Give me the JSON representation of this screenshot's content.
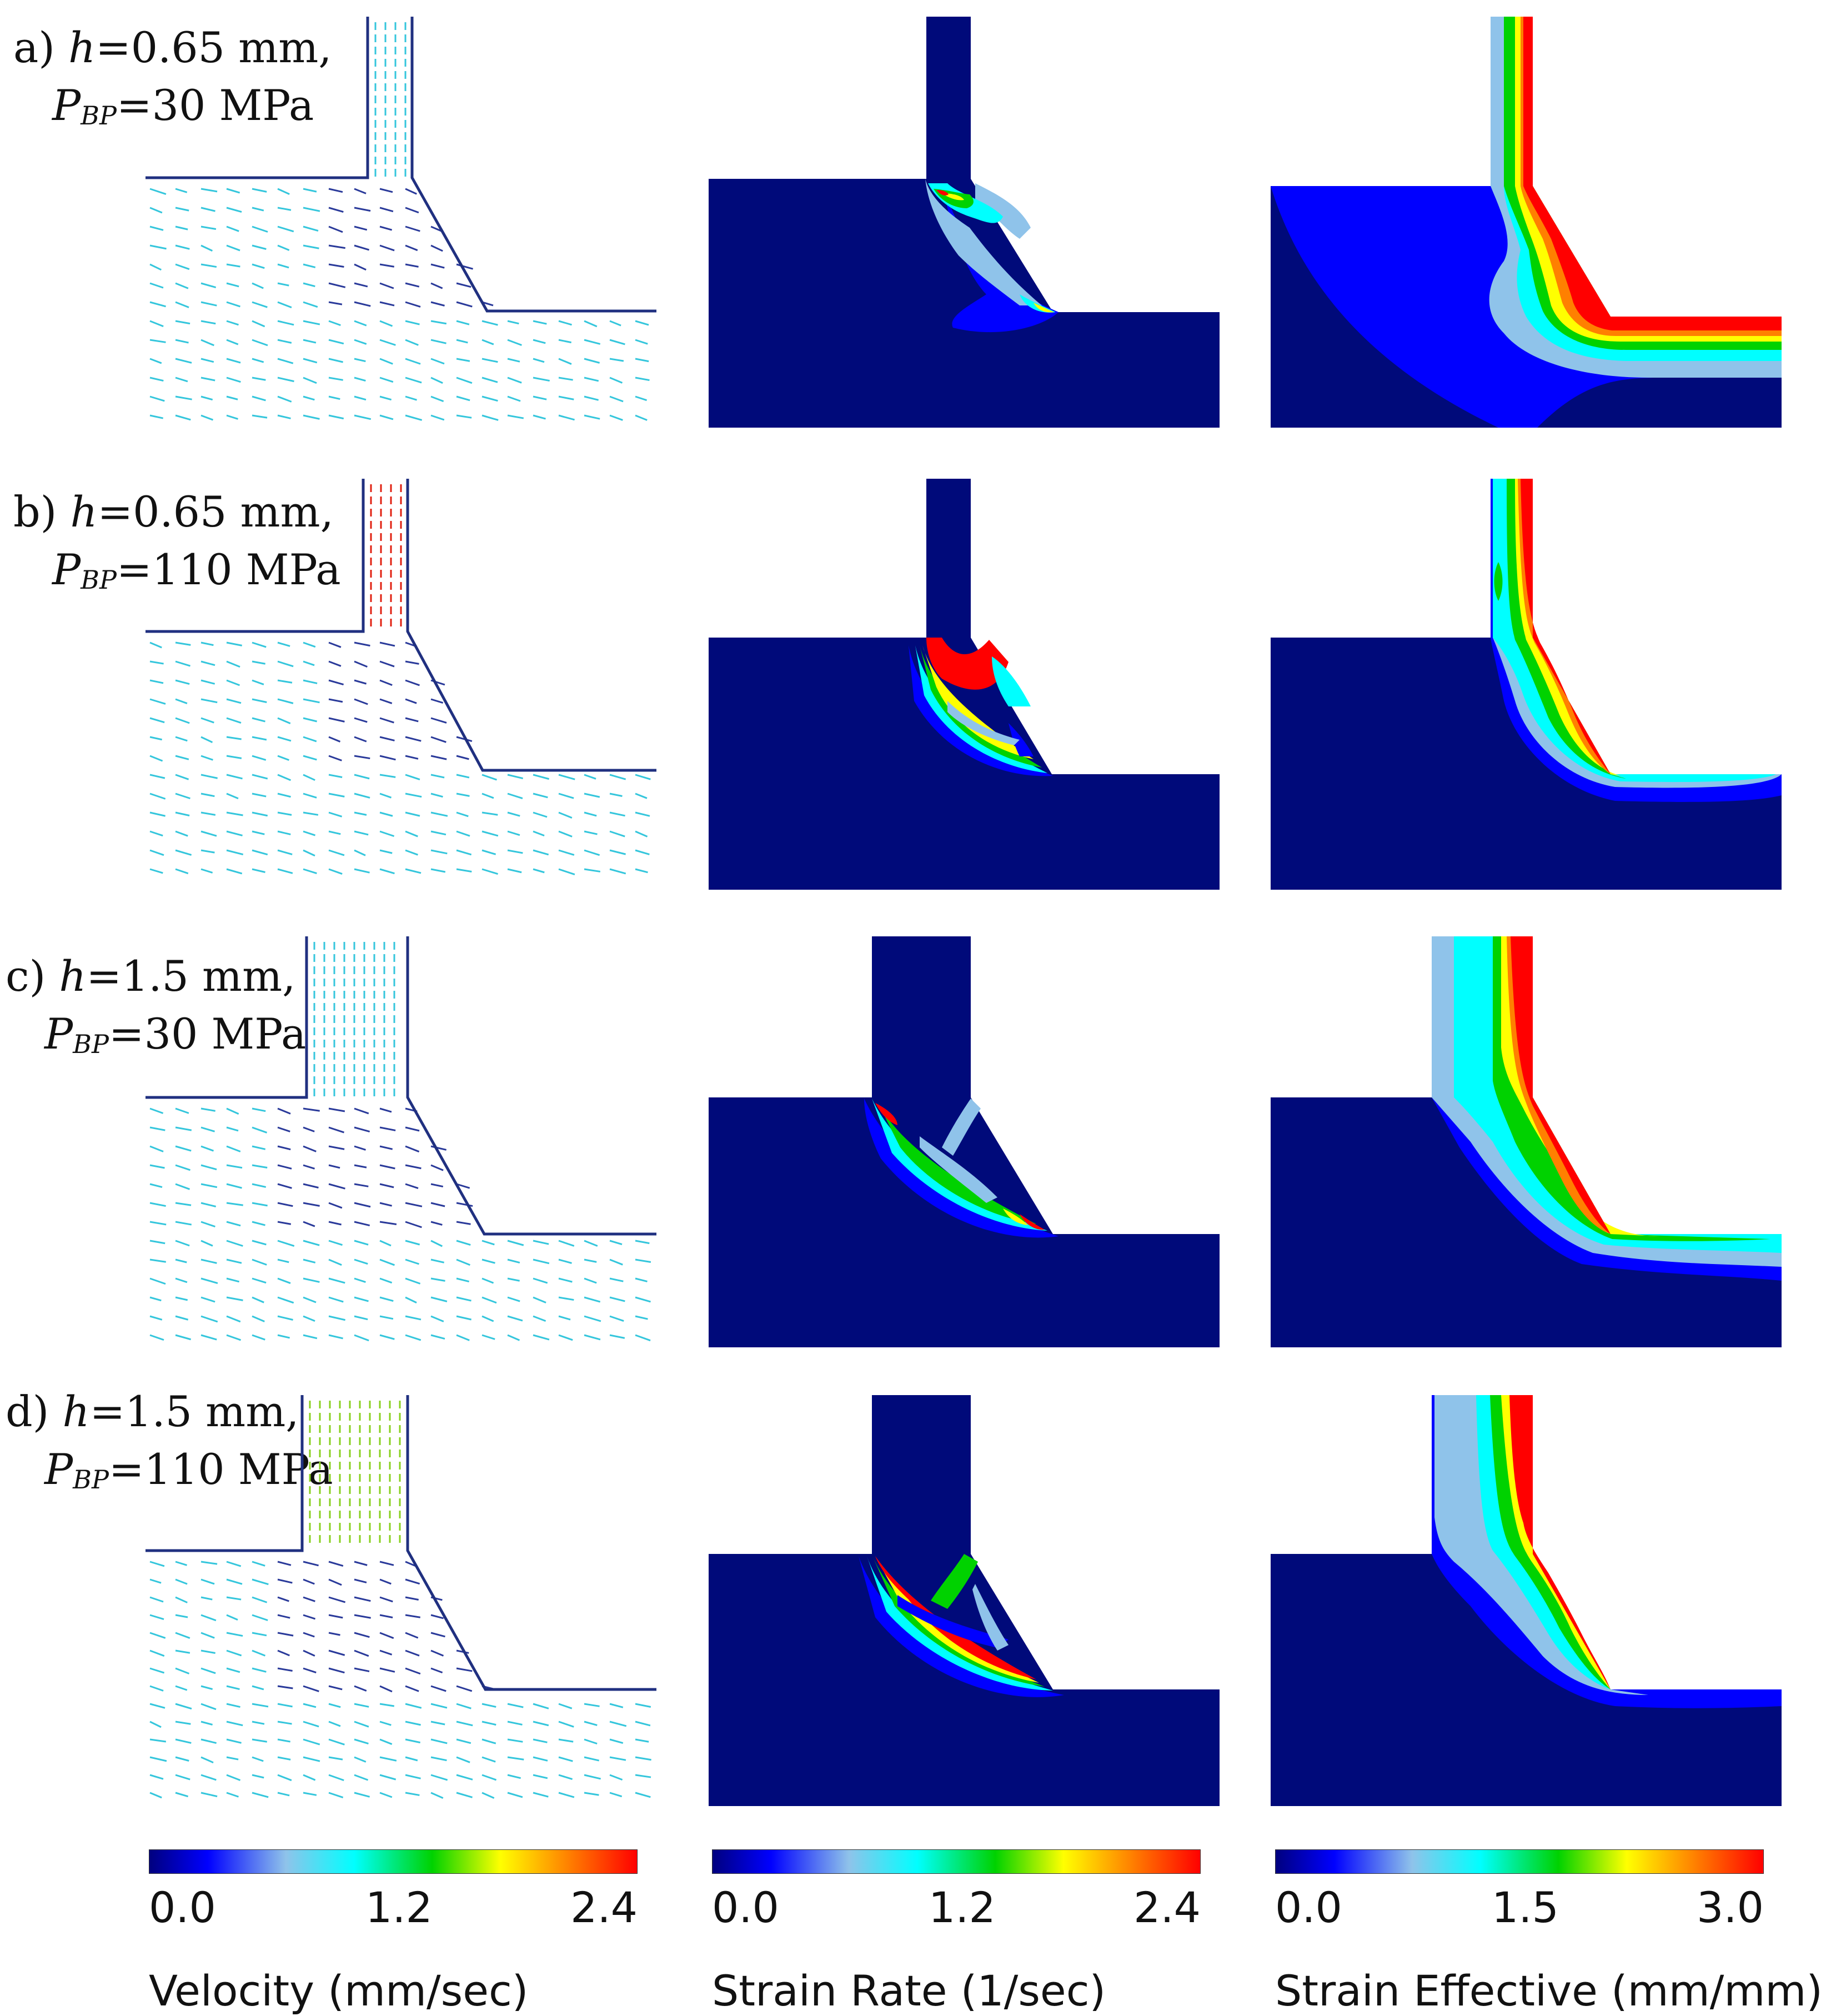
{
  "rows": [
    {
      "letter": "a)",
      "h_symbol": "h",
      "h_value": "=0.65 mm,",
      "p_symbol": "P",
      "p_sub": "BP",
      "p_value": "=30 MPa"
    },
    {
      "letter": "b)",
      "h_symbol": "h",
      "h_value": "=0.65 mm,",
      "p_symbol": "P",
      "p_sub": "BP",
      "p_value": "=110 MPa"
    },
    {
      "letter": "c)",
      "h_symbol": "h",
      "h_value": "=1.5 mm,",
      "p_symbol": "P",
      "p_sub": "BP",
      "p_value": "=30 MPa"
    },
    {
      "letter": "d)",
      "h_symbol": "h",
      "h_value": "=1.5 mm,",
      "p_symbol": "P",
      "p_sub": "BP",
      "p_value": "=110 MPa"
    }
  ],
  "legends": [
    {
      "title": "Velocity (mm/sec)",
      "ticks": [
        "0.0",
        "1.2",
        "2.4"
      ]
    },
    {
      "title": "Strain Rate (1/sec)",
      "ticks": [
        "0.0",
        "1.2",
        "2.4"
      ]
    },
    {
      "title": "Strain Effective (mm/mm)",
      "ticks": [
        "0.0",
        "1.5",
        "3.0"
      ]
    }
  ],
  "colors": {
    "background_field": "#000a7a",
    "scale": [
      "#00007f",
      "#0000ff",
      "#8fc3ea",
      "#00ffff",
      "#00d200",
      "#ffff00",
      "#ff8000",
      "#ff0000"
    ],
    "vector_low": "#2a3a9a",
    "vector_mid": "#35c6dc",
    "vector_high": "#e02010",
    "vector_green": "#8ad020"
  }
}
